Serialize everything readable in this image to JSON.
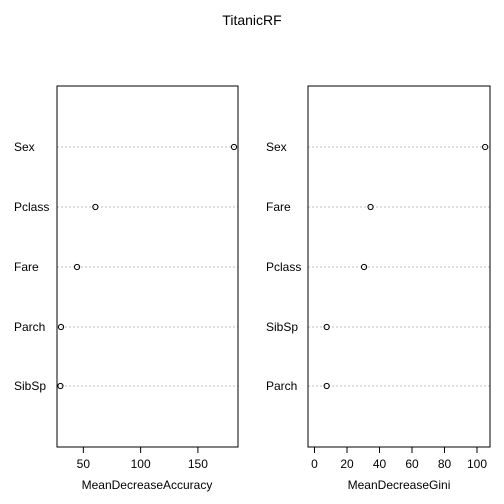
{
  "title": "TitanicRF",
  "colors": {
    "points": "#000000",
    "gridlines": "#bebebe",
    "frame": "#000000"
  },
  "chart_data": [
    {
      "type": "scatter",
      "style": "dotchart",
      "xlabel": "MeanDecreaseAccuracy",
      "xlim": [
        27,
        185
      ],
      "xticks": [
        50,
        100,
        150
      ],
      "categories": [
        "Sex",
        "Pclass",
        "Fare",
        "Parch",
        "SibSp"
      ],
      "values": [
        181.5,
        60.5,
        44.5,
        30.5,
        30.0
      ],
      "grid": "horizontal dotted per category"
    },
    {
      "type": "scatter",
      "style": "dotchart",
      "xlabel": "MeanDecreaseGini",
      "xlim": [
        -4,
        108
      ],
      "xticks": [
        0,
        20,
        40,
        60,
        80,
        100
      ],
      "categories": [
        "Sex",
        "Fare",
        "Pclass",
        "SibSp",
        "Parch"
      ],
      "values": [
        105.0,
        34.5,
        30.5,
        7.5,
        7.5
      ],
      "grid": "horizontal dotted per category"
    }
  ]
}
